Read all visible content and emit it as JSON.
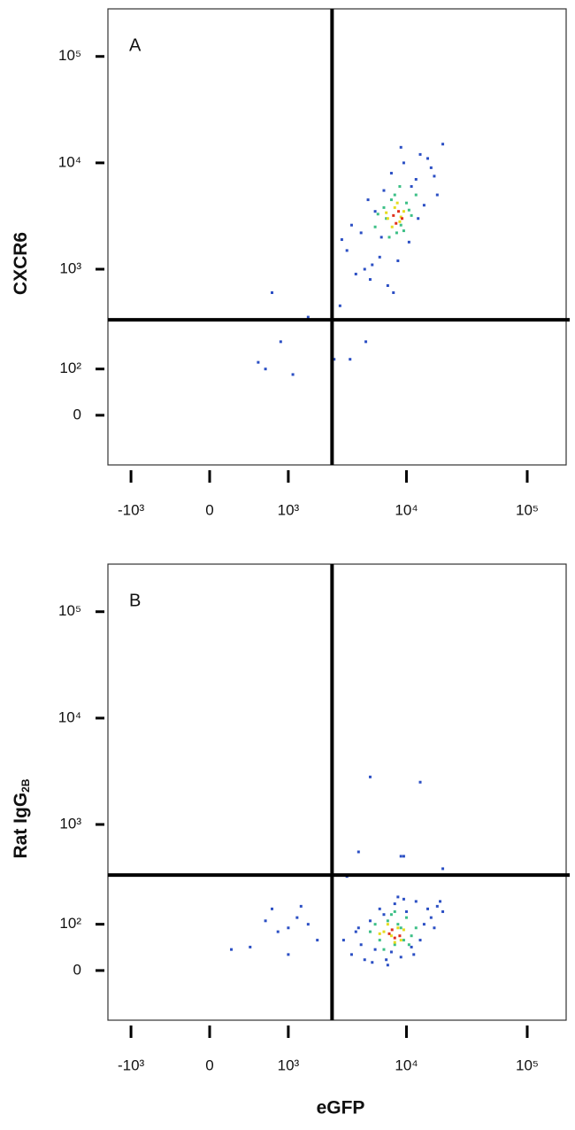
{
  "chart_data": [
    {
      "type": "scatter",
      "panel_label": "A",
      "y_label": {
        "text": "CXCR6"
      },
      "xscale": "biexponential",
      "yscale": "biexponential",
      "xlim": [
        -1600,
        210000
      ],
      "ylim": [
        -110,
        280000
      ],
      "xticks": [
        {
          "value": -1000,
          "label": "-10³"
        },
        0,
        {
          "value": 1000,
          "label": "10³"
        },
        {
          "value": 10000,
          "label": "10⁴"
        },
        {
          "value": 100000,
          "label": "10⁵"
        }
      ],
      "yticks": [
        0,
        {
          "value": 100,
          "label": "10²"
        },
        {
          "value": 1000,
          "label": "10³"
        },
        {
          "value": 10000,
          "label": "10⁴"
        },
        {
          "value": 100000,
          "label": "10⁵"
        }
      ],
      "gates": {
        "x": 2400,
        "y": 330
      },
      "series": [
        {
          "color": "#2b4fc4",
          "x": [
            3200,
            3800,
            4200,
            4500,
            5000,
            5500,
            6000,
            6500,
            7000,
            7500,
            8500,
            9500,
            10500,
            12000,
            13000,
            14000,
            16000,
            18000,
            20000,
            3500,
            4800,
            6200,
            11000,
            15000,
            5200,
            9000,
            2900,
            7800,
            12500,
            17000,
            700,
            850,
            500,
            1100,
            600,
            2500,
            3400,
            4600,
            1500,
            2800
          ],
          "y": [
            1500,
            900,
            2200,
            1000,
            800,
            3500,
            1300,
            5500,
            700,
            8000,
            1200,
            10000,
            1800,
            7000,
            12000,
            4000,
            9000,
            5000,
            15000,
            2600,
            4500,
            2000,
            6000,
            11000,
            1100,
            14000,
            1900,
            600,
            3000,
            7500,
            600,
            200,
            120,
            85,
            100,
            130,
            130,
            200,
            350,
            450
          ]
        },
        {
          "color": "#3cbf86",
          "x": [
            5500,
            6500,
            7200,
            8000,
            9000,
            10000,
            11000,
            6800,
            8800,
            12000,
            7500,
            9500,
            5800,
            10500,
            8300
          ],
          "y": [
            2500,
            3800,
            2000,
            5000,
            2600,
            4200,
            3200,
            3000,
            6000,
            5000,
            4500,
            2300,
            3300,
            3600,
            2200
          ]
        },
        {
          "color": "#e6dc1e",
          "x": [
            7000,
            8000,
            8800,
            9500,
            7600,
            8400,
            6800,
            9000
          ],
          "y": [
            3000,
            3800,
            2800,
            3500,
            2500,
            4200,
            3400,
            3100
          ]
        },
        {
          "color": "#e0301c",
          "x": [
            7800,
            8600,
            8200,
            9200
          ],
          "y": [
            3200,
            3500,
            2700,
            3000
          ]
        }
      ]
    },
    {
      "type": "scatter",
      "panel_label": "B",
      "y_label": {
        "text": "Rat IgG",
        "subscript": "2B"
      },
      "x_label": "eGFP",
      "xscale": "biexponential",
      "yscale": "biexponential",
      "xlim": [
        -1600,
        210000
      ],
      "ylim": [
        -110,
        280000
      ],
      "xticks": [
        {
          "value": -1000,
          "label": "-10³"
        },
        0,
        {
          "value": 1000,
          "label": "10³"
        },
        {
          "value": 10000,
          "label": "10⁴"
        },
        {
          "value": 100000,
          "label": "10⁵"
        }
      ],
      "yticks": [
        0,
        {
          "value": 100,
          "label": "10²"
        },
        {
          "value": 1000,
          "label": "10³"
        },
        {
          "value": 10000,
          "label": "10⁴"
        },
        {
          "value": 100000,
          "label": "10⁵"
        }
      ],
      "gates": {
        "x": 2400,
        "y": 330
      },
      "series": [
        {
          "color": "#2b4fc4",
          "x": [
            3000,
            3500,
            4000,
            4500,
            5000,
            5500,
            6000,
            7000,
            8000,
            9000,
            10000,
            11000,
            12000,
            14000,
            16000,
            18000,
            20000,
            3800,
            5200,
            6500,
            7500,
            9500,
            13000,
            15000,
            4200,
            6800,
            8500,
            11500,
            17000,
            19000,
            200,
            400,
            600,
            700,
            800,
            1000,
            1200,
            1500,
            1300,
            1000,
            5000,
            13000,
            4000,
            9000,
            9500,
            3200,
            20000,
            1800
          ],
          "y": [
            60,
            30,
            90,
            20,
            110,
            40,
            150,
            10,
            170,
            25,
            140,
            45,
            180,
            100,
            120,
            160,
            140,
            80,
            15,
            130,
            35,
            190,
            60,
            150,
            50,
            20,
            200,
            30,
            90,
            180,
            40,
            45,
            110,
            150,
            80,
            90,
            120,
            100,
            160,
            30,
            2800,
            2500,
            550,
            500,
            500,
            320,
            380,
            60
          ]
        },
        {
          "color": "#3cbf86",
          "x": [
            5000,
            6000,
            7000,
            8000,
            9000,
            10000,
            11000,
            6500,
            7500,
            8500,
            9500,
            12000,
            5500,
            10500,
            8000
          ],
          "y": [
            80,
            60,
            110,
            50,
            90,
            120,
            70,
            40,
            130,
            100,
            60,
            90,
            100,
            50,
            140
          ]
        },
        {
          "color": "#e6dc1e",
          "x": [
            6500,
            7500,
            8500,
            9000,
            7000,
            8000,
            6000,
            9500
          ],
          "y": [
            80,
            70,
            90,
            60,
            100,
            55,
            75,
            85
          ]
        },
        {
          "color": "#e0301c",
          "x": [
            7200,
            8000,
            7600,
            8800
          ],
          "y": [
            75,
            65,
            85,
            70
          ]
        }
      ]
    }
  ]
}
